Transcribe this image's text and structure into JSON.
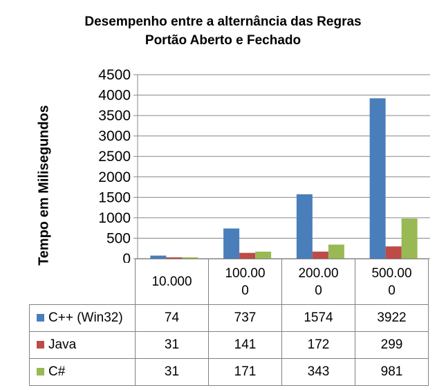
{
  "title_line1": "Desempenho entre a alternância das Regras",
  "title_line2": "Portão Aberto e Fechado",
  "chart_data": {
    "type": "bar",
    "title": "Desempenho entre a alternância das Regras Portão Aberto e Fechado",
    "ylabel": "Tempo em Milisegundos",
    "xlabel": "",
    "ylim": [
      0,
      4500
    ],
    "yticks": [
      "0",
      "500",
      "1000",
      "1500",
      "2000",
      "2500",
      "3000",
      "3500",
      "4000",
      "4500"
    ],
    "categories": [
      "10.000",
      "100.000",
      "200.000",
      "500.000"
    ],
    "category_lines": [
      [
        "10.000"
      ],
      [
        "100.00",
        "0"
      ],
      [
        "200.00",
        "0"
      ],
      [
        "500.00",
        "0"
      ]
    ],
    "series": [
      {
        "name": "C++ (Win32)",
        "color": "#4a7ebb",
        "values": [
          74,
          737,
          1574,
          3922
        ]
      },
      {
        "name": "Java",
        "color": "#be4b48",
        "values": [
          31,
          141,
          172,
          299
        ]
      },
      {
        "name": "C#",
        "color": "#98b954",
        "values": [
          31,
          171,
          343,
          981
        ]
      }
    ],
    "grid": true,
    "legend": "data-table"
  }
}
